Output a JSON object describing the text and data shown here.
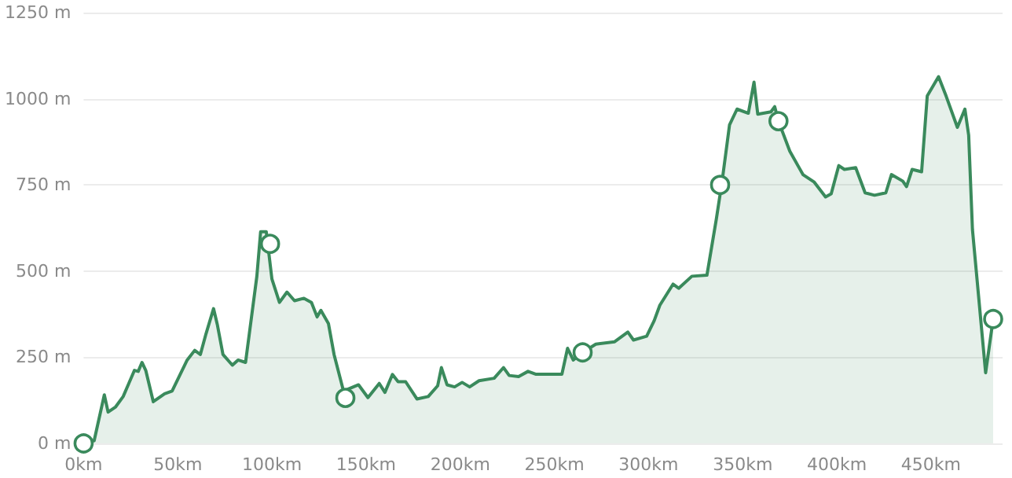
{
  "chart_data": {
    "type": "area",
    "x": [
      0,
      5.6,
      11,
      13,
      17,
      21,
      24,
      27,
      29,
      31,
      33,
      37,
      43,
      47,
      51,
      55,
      59,
      62,
      65,
      69,
      71,
      74,
      79,
      82,
      86,
      88,
      92,
      94,
      97,
      100,
      104,
      108,
      112,
      117,
      121,
      124,
      126,
      130,
      133,
      138,
      146,
      151,
      157,
      160,
      164,
      167,
      171,
      177,
      183,
      188,
      190,
      193,
      197,
      201,
      205,
      210,
      218,
      223,
      226,
      231,
      236,
      240,
      254,
      257,
      260,
      265,
      272,
      282,
      289,
      292,
      299,
      303,
      306,
      313,
      316,
      323,
      331,
      336,
      339,
      343,
      347,
      353,
      356,
      358,
      365,
      367,
      369,
      375,
      382,
      388,
      394,
      397,
      401,
      404,
      410,
      415,
      420,
      426,
      429,
      435,
      437,
      440,
      445,
      448,
      454,
      458,
      464,
      468,
      470,
      472,
      479,
      483
    ],
    "series": [
      {
        "color": "#3a8a5c",
        "values": [
          0,
          8,
          141,
          91,
          106,
          136,
          174,
          212,
          209,
          235,
          212,
          121,
          144,
          152,
          197,
          242,
          270,
          258,
          318,
          391,
          345,
          258,
          227,
          242,
          235,
          318,
          485,
          614,
          614,
          477,
          409,
          439,
          414,
          421,
          409,
          367,
          386,
          348,
          258,
          152,
          170,
          133,
          174,
          148,
          200,
          179,
          179,
          129,
          136,
          167,
          220,
          170,
          164,
          177,
          164,
          182,
          189,
          220,
          197,
          194,
          209,
          201,
          201,
          276,
          242,
          264,
          288,
          295,
          323,
          300,
          311,
          356,
          401,
          462,
          450,
          485,
          488,
          651,
          758,
          924,
          970,
          958,
          1048,
          955,
          962,
          977,
          935,
          848,
          780,
          758,
          715,
          724,
          806,
          795,
          800,
          727,
          720,
          727,
          780,
          761,
          745,
          795,
          788,
          1008,
          1064,
          1008,
          917,
          970,
          894,
          621,
          205,
          361
        ]
      },
      {
        "type": "scatter",
        "color": "#3a8a5c",
        "marker": "circle",
        "x": [
          0,
          99,
          139,
          265,
          338,
          369,
          483
        ],
        "values": [
          0,
          579,
          132,
          264,
          750,
          935,
          361
        ]
      }
    ],
    "xlim": [
      0,
      488
    ],
    "xticks": [
      {
        "value": 0,
        "label": "0km"
      },
      {
        "value": 50,
        "label": "50km"
      },
      {
        "value": 100,
        "label": "100km"
      },
      {
        "value": 150,
        "label": "150km"
      },
      {
        "value": 200,
        "label": "200km"
      },
      {
        "value": 250,
        "label": "250km"
      },
      {
        "value": 300,
        "label": "300km"
      },
      {
        "value": 350,
        "label": "350km"
      },
      {
        "value": 400,
        "label": "400km"
      },
      {
        "value": 450,
        "label": "450km"
      }
    ],
    "ylim": [
      0,
      1250
    ],
    "yticks": [
      {
        "value": 0,
        "label": "0 m"
      },
      {
        "value": 250,
        "label": "250 m"
      },
      {
        "value": 500,
        "label": "500 m"
      },
      {
        "value": 750,
        "label": "750 m"
      },
      {
        "value": 1000,
        "label": "1000 m"
      },
      {
        "value": 1250,
        "label": "1250 m"
      }
    ],
    "grid": "y"
  }
}
